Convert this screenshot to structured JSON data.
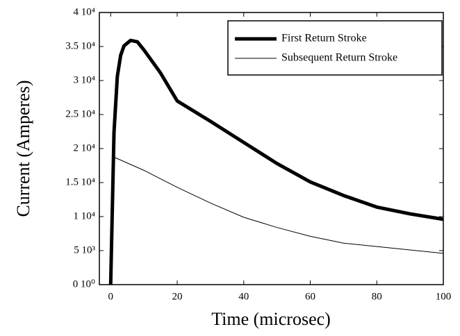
{
  "chart_data": {
    "type": "line",
    "x_label": "Time (microsec)",
    "y_label": "Current (Amperes)",
    "series": [
      {
        "name": "First Return Stroke",
        "color": "#000000",
        "line_width": 5,
        "x": [
          0,
          1,
          2,
          3,
          4,
          6,
          8,
          10,
          15,
          20,
          30,
          40,
          50,
          60,
          70,
          80,
          90,
          100
        ],
        "values": [
          0,
          22400,
          30600,
          33700,
          35100,
          35900,
          35700,
          34500,
          31100,
          27000,
          24000,
          20900,
          17800,
          15100,
          13100,
          11400,
          10400,
          9600
        ]
      },
      {
        "name": "Subsequent Return Stroke",
        "color": "#000000",
        "line_width": 1,
        "x": [
          0,
          1.2,
          10,
          20,
          30,
          40,
          50,
          60,
          70,
          80,
          100
        ],
        "values": [
          0,
          18700,
          16800,
          14300,
          12000,
          9900,
          8400,
          7100,
          6100,
          5600,
          4600
        ]
      }
    ],
    "xlim": [
      -3.4,
      100
    ],
    "xticks": [
      0,
      20,
      40,
      60,
      80,
      100
    ],
    "ylim": [
      0,
      40000
    ],
    "yticks": [
      {
        "value": 0,
        "label": "0 10⁰"
      },
      {
        "value": 5000,
        "label": "5 10³"
      },
      {
        "value": 10000,
        "label": "1 10⁴"
      },
      {
        "value": 15000,
        "label": "1.5 10⁴"
      },
      {
        "value": 20000,
        "label": "2 10⁴"
      },
      {
        "value": 25000,
        "label": "2.5 10⁴"
      },
      {
        "value": 30000,
        "label": "3 10⁴"
      },
      {
        "value": 35000,
        "label": "3.5 10⁴"
      },
      {
        "value": 40000,
        "label": "4 10⁴"
      }
    ],
    "legend": "upper-right",
    "grid": false
  }
}
